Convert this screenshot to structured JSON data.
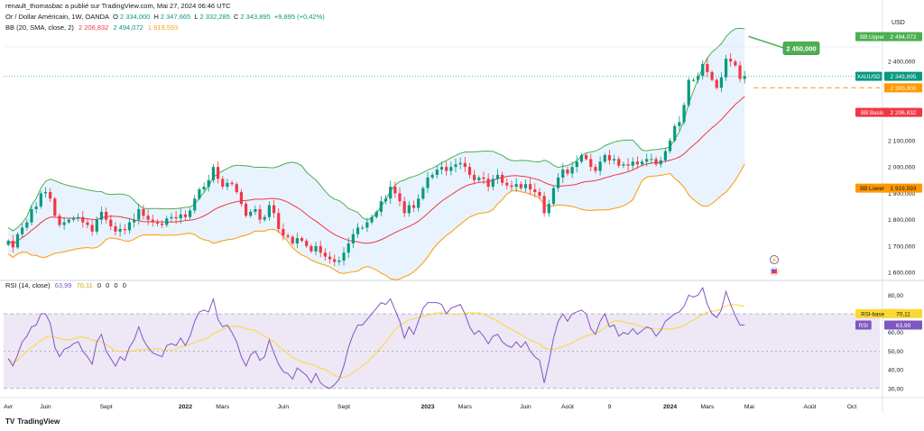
{
  "publisher_line": "renault_thomasbac a publié sur TradingView.com, Mai 27, 2024 06:46 UTC",
  "symbol_line": {
    "name": "Or / Dollar Américain, 1W, OANDA",
    "o_label": "O",
    "o": "2 334,000",
    "h_label": "H",
    "h": "2 347,665",
    "l_label": "L",
    "l": "2 332,285",
    "c_label": "C",
    "c": "2 343,895",
    "change": "+9,895 (+0,42%)"
  },
  "bb_line": {
    "label": "BB (20, SMA, close, 2)",
    "basis": "2 206,832",
    "upper": "2 494,072",
    "lower": "1 919,593"
  },
  "rsi_line": {
    "label": "RSI (14, close)",
    "rsi": "63,99",
    "ma": "70,11",
    "zeros": [
      "0",
      "0",
      "0",
      "0"
    ]
  },
  "brand": "TradingView",
  "colors": {
    "up": "#089981",
    "down": "#f23645",
    "upper": "#4caf50",
    "basis": "#f23645",
    "lower": "#ff9800",
    "band_fill": "#e9f3fd",
    "rsi_line": "#7e57c2",
    "rsi_ma": "#fdd835",
    "rsi_fill": "#ede7f6",
    "price_line": "#089981",
    "target": "#4caf50",
    "support": "#ff9800"
  },
  "chart_data": {
    "type": "candlestick",
    "currency": "USD",
    "price_axis_ticks": [
      "2 400,000",
      "2 300,000",
      "2 200,000",
      "2 100,000",
      "2 000,000",
      "1 900,000",
      "1 800,000",
      "1 700,000",
      "1 600,000"
    ],
    "price_axis_values": [
      2400,
      2300,
      2200,
      2100,
      2000,
      1900,
      1800,
      1700,
      1600
    ],
    "ylim": [
      1580,
      2510
    ],
    "rsi_axis_ticks": [
      "80,00",
      "60,00",
      "50,00",
      "40,00",
      "30,00"
    ],
    "rsi_axis_values": [
      80,
      60,
      50,
      40,
      30
    ],
    "rsi_ylim": [
      27,
      85
    ],
    "rsi_levels": [
      70,
      50,
      30
    ],
    "time_labels": [
      {
        "label": "Avr",
        "w": 0
      },
      {
        "label": "Juin",
        "w": 8
      },
      {
        "label": "Sept",
        "w": 21
      },
      {
        "label": "2022",
        "w": 38,
        "bold": true
      },
      {
        "label": "Mars",
        "w": 46
      },
      {
        "label": "Juin",
        "w": 59
      },
      {
        "label": "Sept",
        "w": 72
      },
      {
        "label": "2023",
        "w": 90,
        "bold": true
      },
      {
        "label": "Mars",
        "w": 98
      },
      {
        "label": "Juin",
        "w": 111
      },
      {
        "label": "Août",
        "w": 120
      },
      {
        "label": "9",
        "w": 129
      },
      {
        "label": "2024",
        "w": 142,
        "bold": true
      },
      {
        "label": "Mars",
        "w": 150
      },
      {
        "label": "Mai",
        "w": 159
      },
      {
        "label": "Août",
        "w": 172
      },
      {
        "label": "Oct",
        "w": 181
      }
    ],
    "x_range_weeks": [
      -1,
      187
    ],
    "last_week": 160,
    "close": [
      1720,
      1695,
      1745,
      1770,
      1790,
      1840,
      1850,
      1900,
      1905,
      1880,
      1815,
      1780,
      1790,
      1800,
      1805,
      1810,
      1790,
      1780,
      1755,
      1800,
      1830,
      1800,
      1775,
      1755,
      1765,
      1760,
      1790,
      1800,
      1840,
      1815,
      1800,
      1790,
      1785,
      1780,
      1805,
      1810,
      1805,
      1820,
      1810,
      1835,
      1880,
      1915,
      1925,
      1950,
      2000,
      1955,
      1925,
      1940,
      1935,
      1905,
      1860,
      1815,
      1830,
      1840,
      1800,
      1810,
      1855,
      1825,
      1765,
      1740,
      1735,
      1710,
      1730,
      1720,
      1700,
      1680,
      1700,
      1675,
      1660,
      1650,
      1640,
      1645,
      1675,
      1710,
      1745,
      1770,
      1770,
      1790,
      1810,
      1830,
      1870,
      1880,
      1925,
      1900,
      1870,
      1825,
      1855,
      1845,
      1880,
      1920,
      1960,
      1970,
      1990,
      2000,
      1985,
      2000,
      2010,
      2015,
      2000,
      1970,
      1950,
      1960,
      1955,
      1925,
      1955,
      1970,
      1940,
      1930,
      1925,
      1935,
      1920,
      1935,
      1915,
      1905,
      1890,
      1825,
      1860,
      1920,
      1960,
      1990,
      1975,
      2000,
      2020,
      2045,
      2030,
      2000,
      1985,
      2020,
      2045,
      2025,
      2030,
      2005,
      2010,
      2005,
      2020,
      2010,
      2020,
      2030,
      2030,
      2010,
      2025,
      2060,
      2100,
      2155,
      2170,
      2235,
      2330,
      2330,
      2345,
      2390,
      2360,
      2330,
      2300,
      2340,
      2410,
      2400,
      2385,
      2334,
      2344
    ],
    "rsi": [
      46,
      42,
      48,
      55,
      58,
      63,
      64,
      70,
      70,
      65,
      52,
      47,
      51,
      52,
      54,
      55,
      50,
      47,
      43,
      55,
      59,
      50,
      46,
      42,
      47,
      45,
      52,
      56,
      63,
      56,
      52,
      49,
      48,
      47,
      53,
      54,
      53,
      57,
      53,
      58,
      66,
      71,
      72,
      71,
      78,
      67,
      63,
      64,
      60,
      55,
      47,
      42,
      48,
      50,
      45,
      47,
      56,
      49,
      43,
      39,
      38,
      35,
      41,
      39,
      37,
      33,
      38,
      33,
      31,
      30,
      32,
      35,
      42,
      52,
      59,
      64,
      64,
      67,
      70,
      73,
      76,
      75,
      78,
      72,
      66,
      57,
      63,
      59,
      66,
      73,
      76,
      76,
      76,
      75,
      70,
      73,
      74,
      75,
      70,
      63,
      59,
      61,
      58,
      54,
      58,
      59,
      55,
      53,
      52,
      55,
      52,
      55,
      50,
      47,
      45,
      33,
      44,
      57,
      66,
      70,
      66,
      70,
      71,
      72,
      70,
      62,
      59,
      66,
      70,
      63,
      64,
      58,
      60,
      59,
      62,
      59,
      61,
      63,
      62,
      58,
      61,
      66,
      68,
      70,
      71,
      74,
      80,
      79,
      80,
      84,
      75,
      70,
      68,
      72,
      82,
      75,
      69,
      64,
      64
    ],
    "bb_basis": "2 206,832",
    "bb_upper": "2 494,072",
    "bb_lower": "1 919,593",
    "annotations": {
      "target_label": "2 450,000",
      "target_value": 2450,
      "support_label": "2 300,000",
      "support_value": 2300,
      "price_label": "XAUUSD",
      "price_value_text": "2 343,895",
      "price_value": 2343.895,
      "upper_label": "BB:Upper",
      "upper_value_text": "2 494,072",
      "upper_value": 2494.072,
      "basis_label": "BB:Basis",
      "basis_value_text": "2 206,832",
      "basis_value": 2206.832,
      "lower_label": "BB:Lower",
      "lower_value_text": "1 919,593",
      "lower_value": 1919.593,
      "rsi_ma_label": "RSI-based MA",
      "rsi_ma_value_text": "70,11",
      "rsi_ma_value": 70.11,
      "rsi_label": "RSI",
      "rsi_value_text": "63,99",
      "rsi_value": 63.99
    },
    "grid": false,
    "legend": "top-left"
  }
}
